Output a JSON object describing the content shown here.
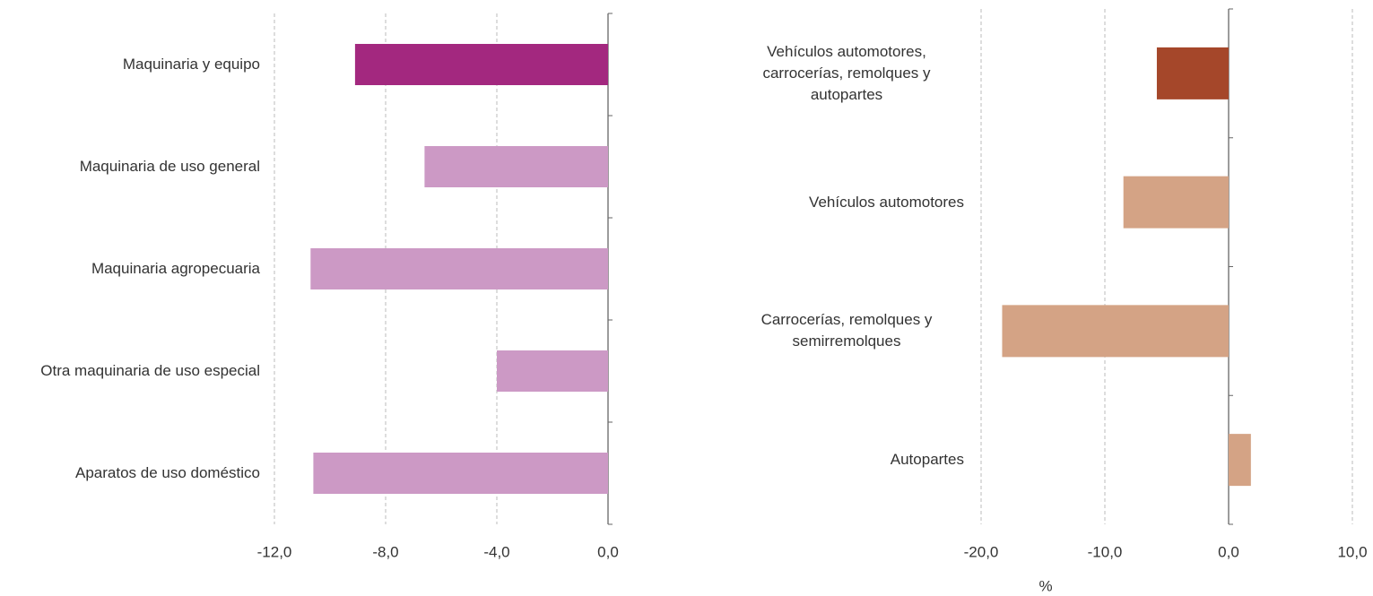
{
  "chart_data": [
    {
      "type": "bar",
      "orientation": "horizontal",
      "categories": [
        "Maquinaria y equipo",
        "Maquinaria de uso general",
        "Maquinaria agropecuaria",
        "Otra maquinaria de uso especial",
        "Aparatos de uso doméstico"
      ],
      "values": [
        -9.1,
        -6.6,
        -10.7,
        -4.0,
        -10.6
      ],
      "colors": [
        "#a3287f",
        "#cc99c5",
        "#cc99c5",
        "#cc99c5",
        "#cc99c5"
      ],
      "xlim": [
        -12,
        0
      ],
      "xticks": [
        {
          "value": -12,
          "label": "-12,0"
        },
        {
          "value": -8,
          "label": "-8,0"
        },
        {
          "value": -4,
          "label": "-4,0"
        },
        {
          "value": 0,
          "label": "0,0"
        }
      ],
      "xlabel": "%",
      "grid": true
    },
    {
      "type": "bar",
      "orientation": "horizontal",
      "categories": [
        "Vehículos automotores, carrocerías, remolques y autopartes",
        "Vehículos automotores",
        "Carrocerías, remolques y semirremolques",
        "Autopartes"
      ],
      "values": [
        -5.8,
        -8.5,
        -18.3,
        1.8
      ],
      "colors": [
        "#a5472a",
        "#d4a385",
        "#d4a385",
        "#d4a385"
      ],
      "xlim": [
        -20,
        10
      ],
      "xticks": [
        {
          "value": -20,
          "label": "-20,0"
        },
        {
          "value": -10,
          "label": "-10,0"
        },
        {
          "value": 0,
          "label": "0,0"
        },
        {
          "value": 10,
          "label": "10,0"
        }
      ],
      "xlabel": "%",
      "grid": true
    }
  ]
}
